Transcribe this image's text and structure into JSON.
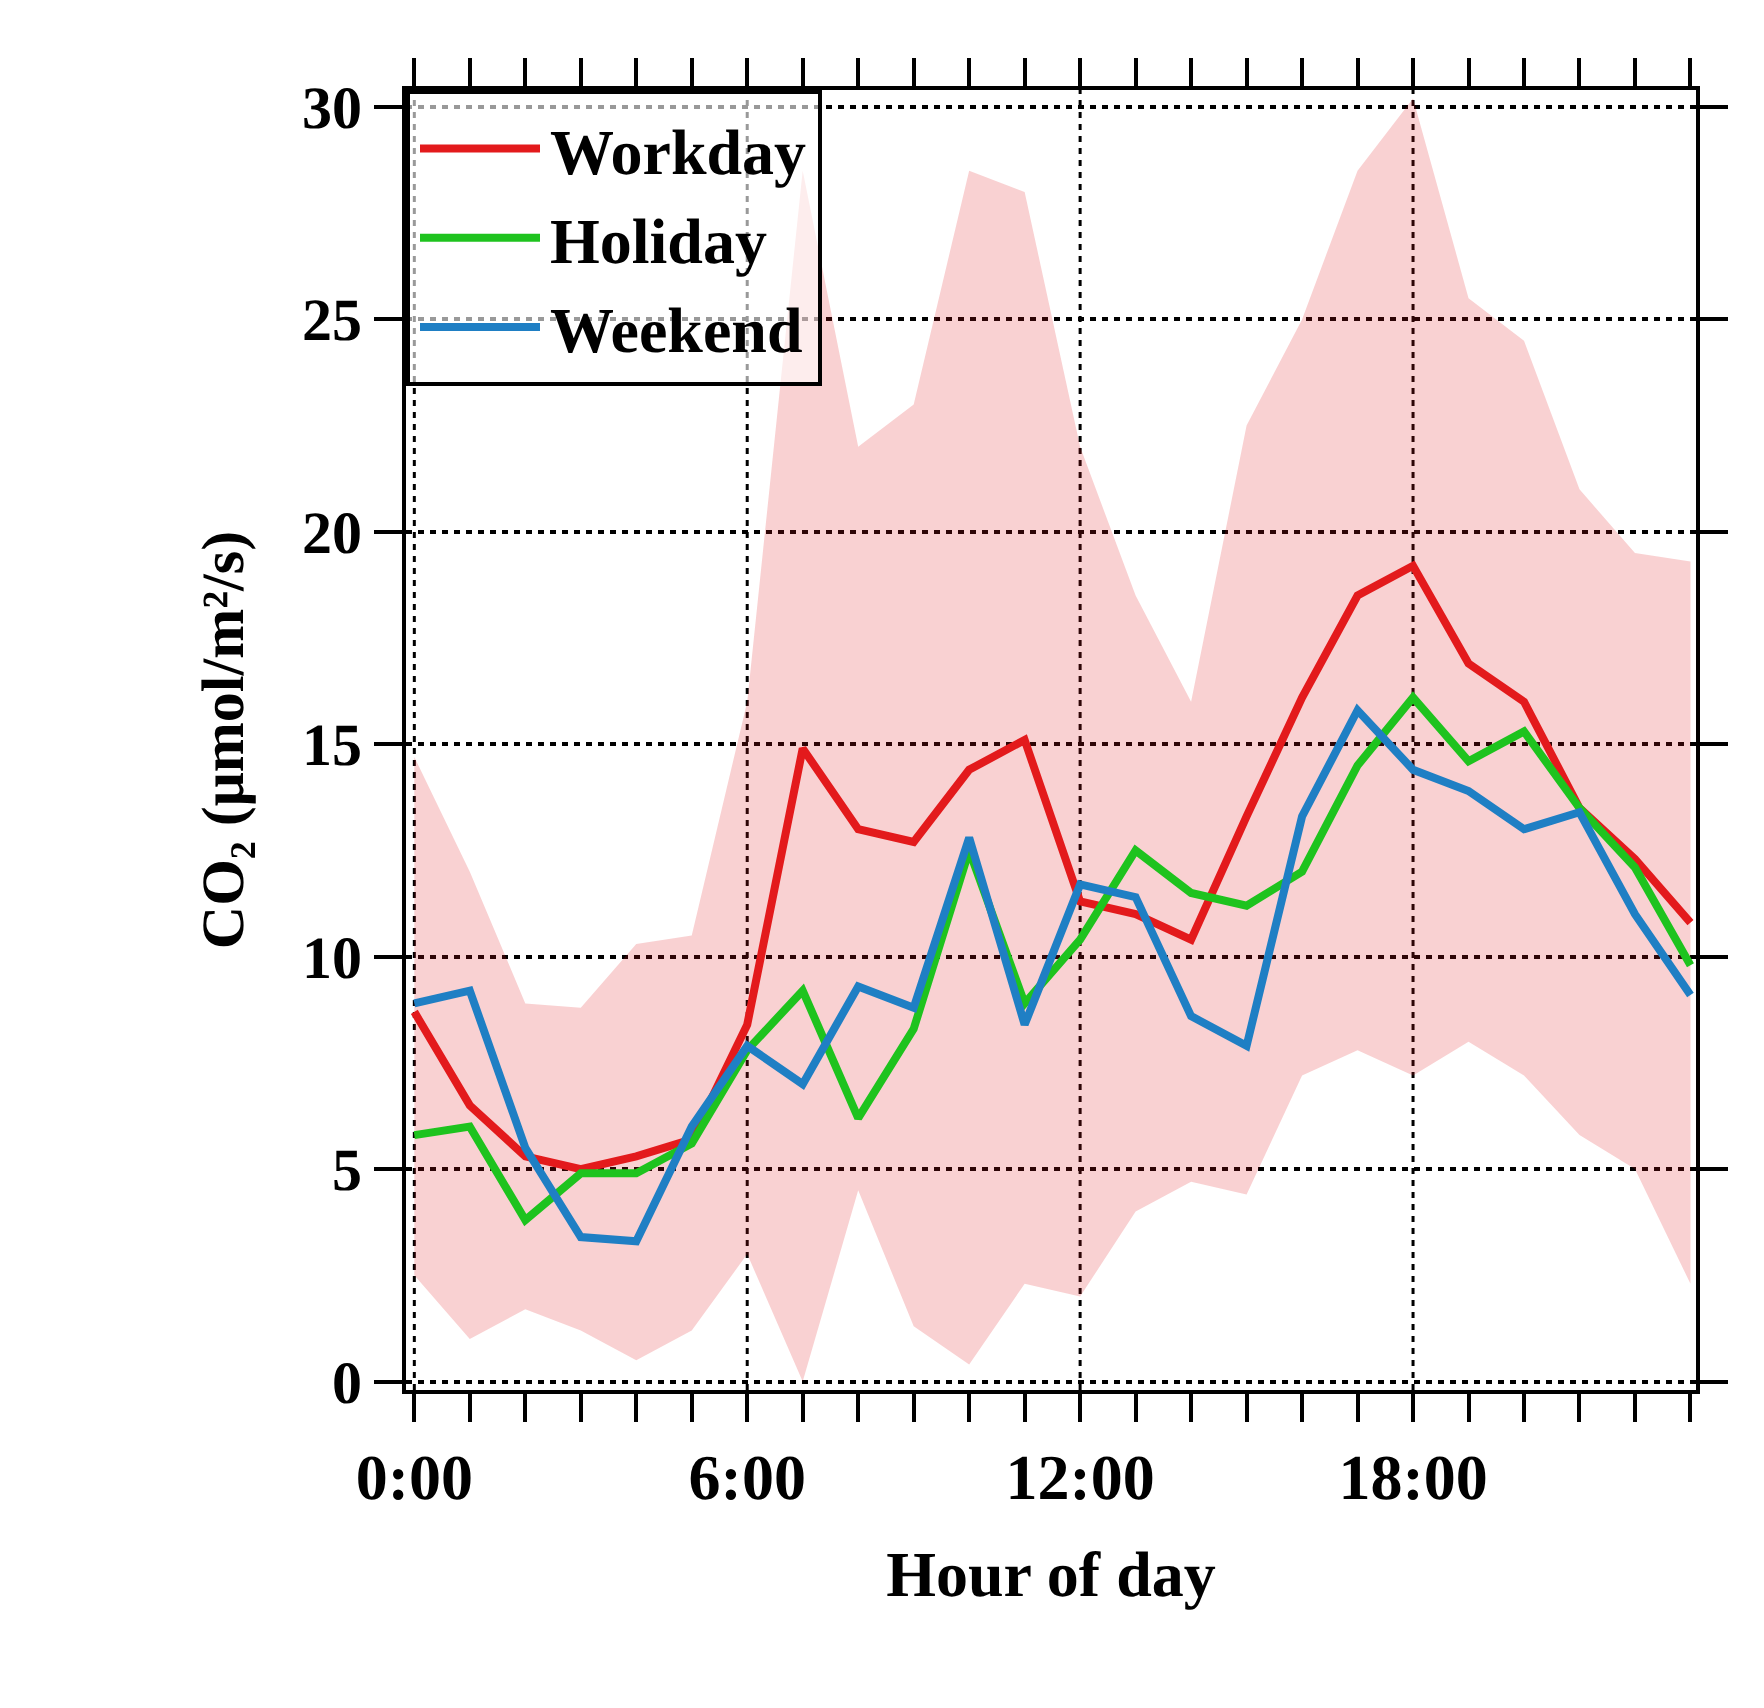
{
  "chart_data": {
    "type": "line",
    "xlabel": "Hour of day",
    "ylabel": "CO₂ (μmol/m²/s)",
    "x": [
      0,
      1,
      2,
      3,
      4,
      5,
      6,
      7,
      8,
      9,
      10,
      11,
      12,
      13,
      14,
      15,
      16,
      17,
      18,
      19,
      20,
      21,
      22,
      23
    ],
    "series": [
      {
        "name": "Workday",
        "color": "#e31a1c",
        "values": [
          8.7,
          6.5,
          5.3,
          5.0,
          5.3,
          5.7,
          8.4,
          14.9,
          13.0,
          12.7,
          14.4,
          15.1,
          11.3,
          11.0,
          10.4,
          13.3,
          16.1,
          18.5,
          19.2,
          16.9,
          16.0,
          13.5,
          12.3,
          10.8
        ],
        "lower": [
          2.5,
          1.0,
          1.7,
          1.2,
          0.5,
          1.2,
          3.0,
          0.0,
          4.5,
          1.3,
          0.4,
          2.3,
          2.0,
          4.0,
          4.7,
          4.4,
          7.2,
          7.8,
          7.2,
          8.0,
          7.2,
          5.8,
          5.0,
          2.3
        ],
        "upper": [
          14.7,
          12.0,
          8.9,
          8.8,
          10.3,
          10.5,
          16.0,
          28.5,
          22.0,
          23.0,
          28.5,
          28.0,
          22.0,
          18.5,
          16.0,
          22.5,
          25.0,
          28.5,
          30.2,
          25.5,
          24.5,
          21.0,
          19.5,
          19.3
        ]
      },
      {
        "name": "Holiday",
        "color": "#1ec31e",
        "values": [
          5.8,
          6.0,
          3.8,
          4.9,
          4.9,
          5.6,
          7.8,
          9.2,
          6.2,
          8.3,
          12.5,
          8.9,
          10.4,
          12.5,
          11.5,
          11.2,
          12.0,
          14.5,
          16.1,
          14.6,
          15.3,
          13.5,
          12.1,
          9.8
        ]
      },
      {
        "name": "Weekend",
        "color": "#1f7fc4",
        "values": [
          8.9,
          9.2,
          5.5,
          3.4,
          3.3,
          6.0,
          7.9,
          7.0,
          9.3,
          8.8,
          12.8,
          8.4,
          11.7,
          11.4,
          8.6,
          7.9,
          13.3,
          15.8,
          14.4,
          13.9,
          13.0,
          13.4,
          11.0,
          9.1
        ]
      }
    ],
    "xlim": [
      -0.15,
      23.1
    ],
    "ylim": [
      -0.2,
      30.4
    ],
    "xticks": [
      {
        "value": 0,
        "label": "0:00"
      },
      {
        "value": 1,
        "label": null
      },
      {
        "value": 2,
        "label": null
      },
      {
        "value": 3,
        "label": null
      },
      {
        "value": 4,
        "label": null
      },
      {
        "value": 5,
        "label": null
      },
      {
        "value": 6,
        "label": "6:00"
      },
      {
        "value": 7,
        "label": null
      },
      {
        "value": 8,
        "label": null
      },
      {
        "value": 9,
        "label": null
      },
      {
        "value": 10,
        "label": null
      },
      {
        "value": 11,
        "label": null
      },
      {
        "value": 12,
        "label": "12:00"
      },
      {
        "value": 13,
        "label": null
      },
      {
        "value": 14,
        "label": null
      },
      {
        "value": 15,
        "label": null
      },
      {
        "value": 16,
        "label": null
      },
      {
        "value": 17,
        "label": null
      },
      {
        "value": 18,
        "label": "18:00"
      },
      {
        "value": 19,
        "label": null
      },
      {
        "value": 20,
        "label": null
      },
      {
        "value": 21,
        "label": null
      },
      {
        "value": 22,
        "label": null
      },
      {
        "value": 23,
        "label": null
      }
    ],
    "yticks": [
      0,
      5,
      10,
      15,
      20,
      25,
      30
    ],
    "grid": true,
    "legend": "top left",
    "line_style": "solid",
    "marker": "none"
  }
}
